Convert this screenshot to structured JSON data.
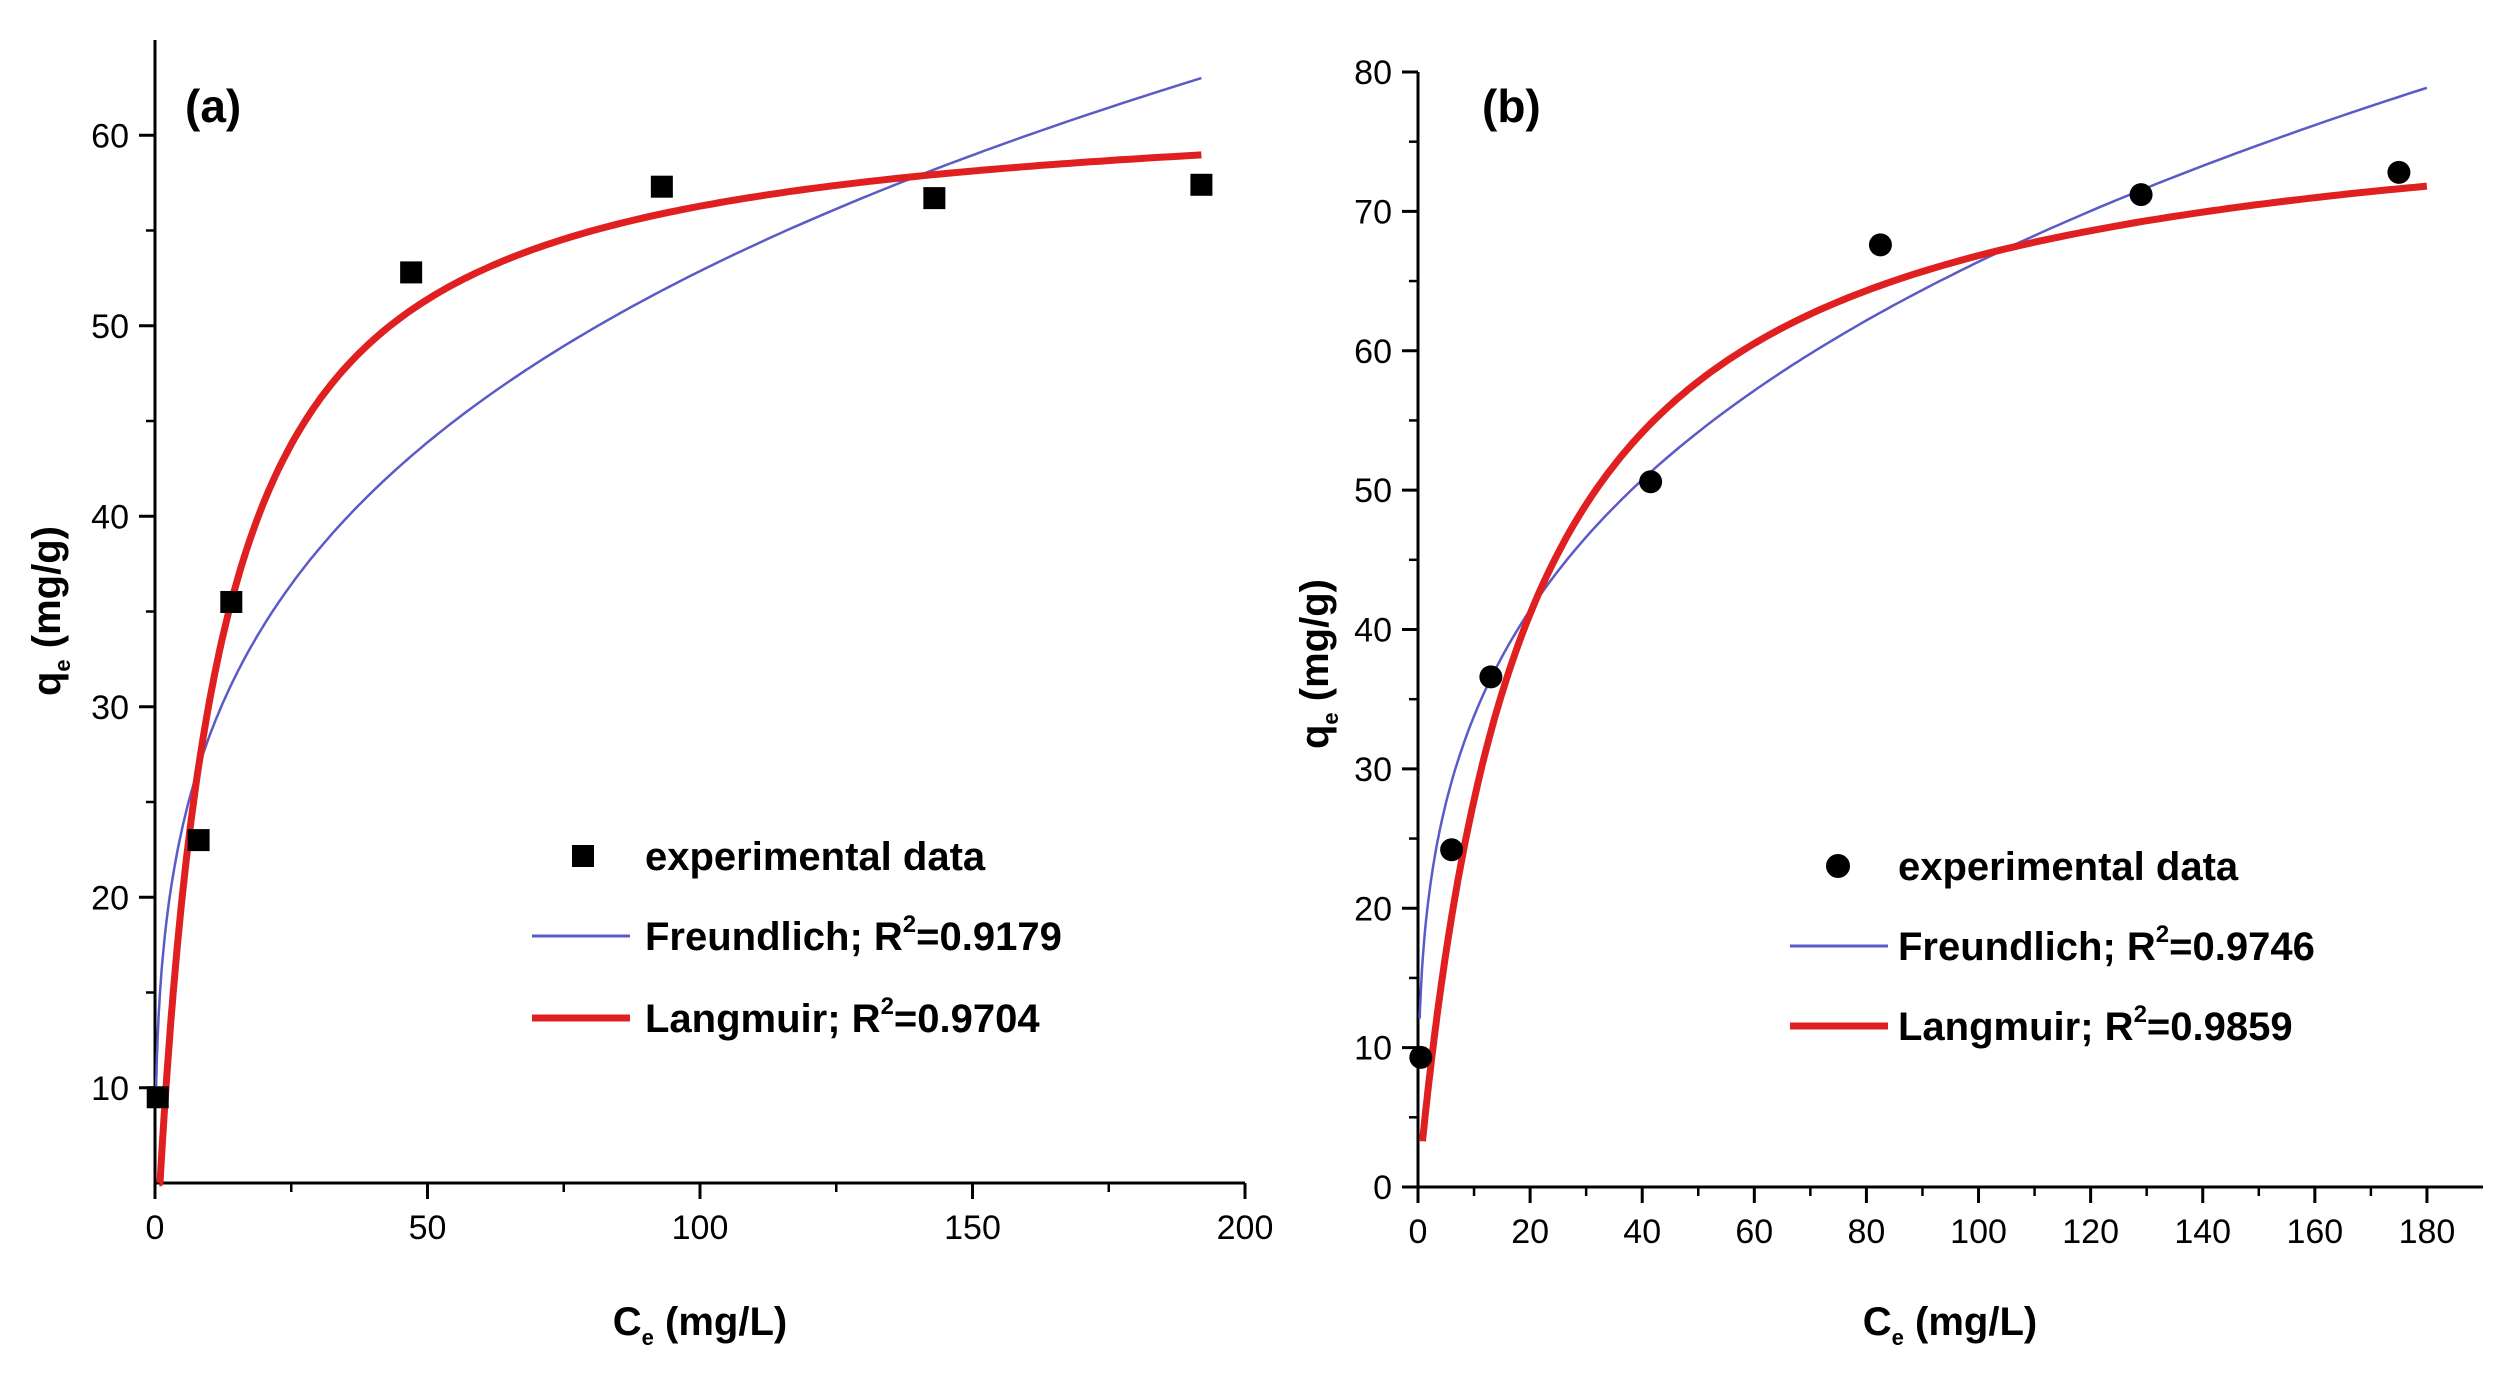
{
  "chart_data": [
    {
      "type": "scatter",
      "panel_label": "(a)",
      "xlabel": "C",
      "xlabel_sub": "e",
      "xlabel_unit": " (mg/L)",
      "ylabel": "q",
      "ylabel_sub": "e",
      "ylabel_unit": " (mg/g)",
      "xlim": [
        0,
        200
      ],
      "ylim": [
        5,
        65
      ],
      "xticks": [
        0,
        50,
        100,
        150,
        200
      ],
      "yticks": [
        10,
        20,
        30,
        40,
        50,
        60
      ],
      "marker": "square",
      "series": [
        {
          "name": "experimental data",
          "kind": "points",
          "x": [
            0.5,
            8,
            14,
            47,
            93,
            143,
            192
          ],
          "y": [
            9.5,
            23,
            35.5,
            52.8,
            57.3,
            56.7,
            57.4
          ]
        },
        {
          "name": "Freundlich",
          "r2_label": "R",
          "r2_sup": "2",
          "r2_value": "=0.9179",
          "kind": "curve",
          "model": "freundlich",
          "params": {
            "kf": 15.33,
            "n": 3.72
          },
          "x_range": [
            0.2,
            192
          ],
          "color": "#5b5bc8"
        },
        {
          "name": "Langmuir",
          "r2_label": "R",
          "r2_sup": "2",
          "r2_value": "=0.9704",
          "kind": "curve",
          "model": "langmuir",
          "params": {
            "qmax": 62.2,
            "kl": 0.095
          },
          "x_range": [
            0.8,
            192
          ],
          "color": "#e02020"
        }
      ],
      "legend": {
        "experimental": "experimental data",
        "freundlich": "Freundlich; ",
        "langmuir": "Langmuir; "
      }
    },
    {
      "type": "scatter",
      "panel_label": "(b)",
      "xlabel": "C",
      "xlabel_sub": "e",
      "xlabel_unit": " (mg/L)",
      "ylabel": "q",
      "ylabel_sub": "e",
      "ylabel_unit": " (mg/g)",
      "xlim": [
        0,
        190
      ],
      "ylim": [
        0,
        80
      ],
      "xticks": [
        0,
        20,
        40,
        60,
        80,
        100,
        120,
        140,
        160,
        180
      ],
      "yticks": [
        0,
        10,
        20,
        30,
        40,
        50,
        60,
        70,
        80
      ],
      "marker": "circle",
      "series": [
        {
          "name": "experimental data",
          "kind": "points",
          "x": [
            0.5,
            6,
            13,
            41.5,
            82.5,
            129,
            175
          ],
          "y": [
            9.3,
            24.2,
            36.6,
            50.6,
            67.6,
            71.2,
            72.8
          ]
        },
        {
          "name": "Freundlich",
          "r2_label": "R",
          "r2_sup": "2",
          "r2_value": "=0.9746",
          "kind": "curve",
          "model": "freundlich",
          "params": {
            "kf": 17.2,
            "n": 3.41
          },
          "x_range": [
            0.3,
            180
          ],
          "color": "#5b5bc8"
        },
        {
          "name": "Langmuir",
          "r2_label": "R",
          "r2_sup": "2",
          "r2_value": "=0.9859",
          "kind": "curve",
          "model": "langmuir",
          "params": {
            "qmax": 79.2,
            "kl": 0.054
          },
          "x_range": [
            0.8,
            180
          ],
          "color": "#e02020"
        }
      ],
      "legend": {
        "experimental": "experimental data",
        "freundlich": "Freundlich; ",
        "langmuir": "Langmuir; "
      }
    }
  ]
}
